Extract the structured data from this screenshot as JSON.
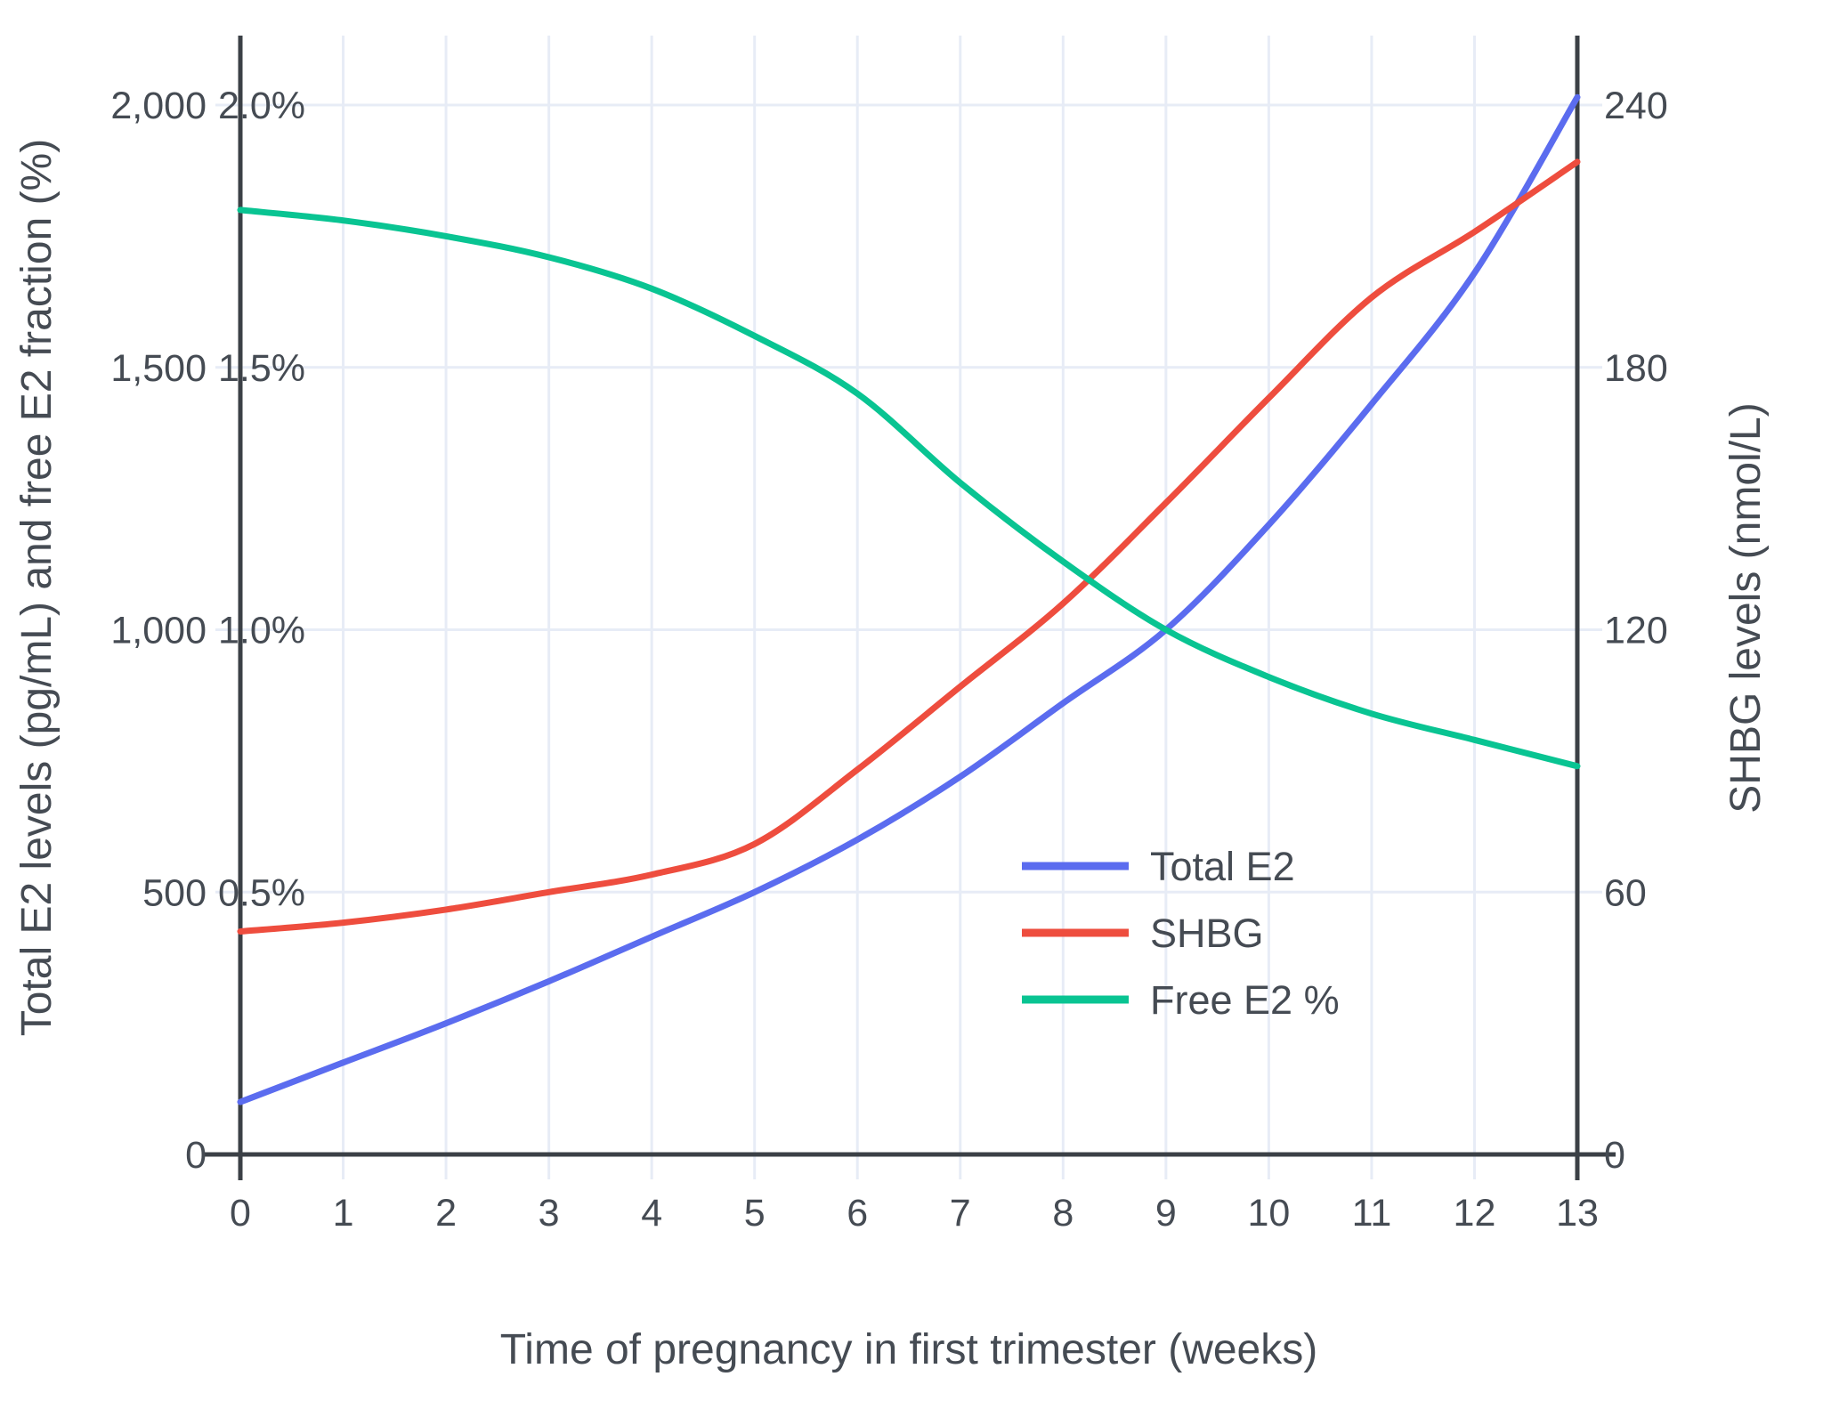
{
  "figure": {
    "background": "#ffffff",
    "text_color": "#454b53",
    "axis_line_color": "#3b4046",
    "grid_color": "#e7ecf6"
  },
  "chart_data": {
    "type": "line",
    "x": [
      0,
      1,
      2,
      3,
      4,
      5,
      6,
      7,
      8,
      9,
      10,
      11,
      12,
      13
    ],
    "x_tick_labels": [
      "0",
      "1",
      "2",
      "3",
      "4",
      "5",
      "6",
      "7",
      "8",
      "9",
      "10",
      "11",
      "12",
      "13"
    ],
    "xlabel": "Time of pregnancy in first trimester (weeks)",
    "ylabel_left": "Total E2 levels (pg/mL) and free E2 fraction (%)",
    "ylabel_right": "SHBG levels (nmol/L)",
    "left_axis": {
      "range": [
        0,
        2000
      ],
      "ticks": [
        0,
        500,
        1000,
        1500,
        2000
      ],
      "tick_labels": [
        "0",
        "500",
        "1,000",
        "1,500",
        "2,000"
      ]
    },
    "left_axis_pct_labels": [
      {
        "value": 500,
        "label": "0.5%"
      },
      {
        "value": 1000,
        "label": "1.0%"
      },
      {
        "value": 1500,
        "label": "1.5%"
      },
      {
        "value": 2000,
        "label": "2.0%"
      }
    ],
    "right_axis": {
      "range": [
        0,
        240
      ],
      "ticks": [
        0,
        60,
        120,
        180,
        240
      ],
      "tick_labels": [
        "0",
        "60",
        "120",
        "180",
        "240"
      ]
    },
    "grid": true,
    "legend_position": "middle-right",
    "series": [
      {
        "name": "Total E2",
        "color": "#5b6cef",
        "axis": "left",
        "unit": "pg/mL",
        "values": [
          100,
          175,
          250,
          330,
          415,
          500,
          600,
          720,
          860,
          1000,
          1200,
          1430,
          1680,
          2015
        ]
      },
      {
        "name": "SHBG",
        "color": "#ee4d3e",
        "axis": "right",
        "unit": "nmol/L",
        "values": [
          51,
          53,
          56,
          60,
          64,
          71,
          88,
          107,
          126,
          149,
          173,
          196,
          211,
          227
        ]
      },
      {
        "name": "Free E2 %",
        "color": "#09c492",
        "axis": "left_percent",
        "unit": "%",
        "values": [
          1.8,
          1.78,
          1.75,
          1.71,
          1.65,
          1.56,
          1.45,
          1.28,
          1.13,
          1.0,
          0.91,
          0.84,
          0.79,
          0.74
        ]
      }
    ]
  }
}
